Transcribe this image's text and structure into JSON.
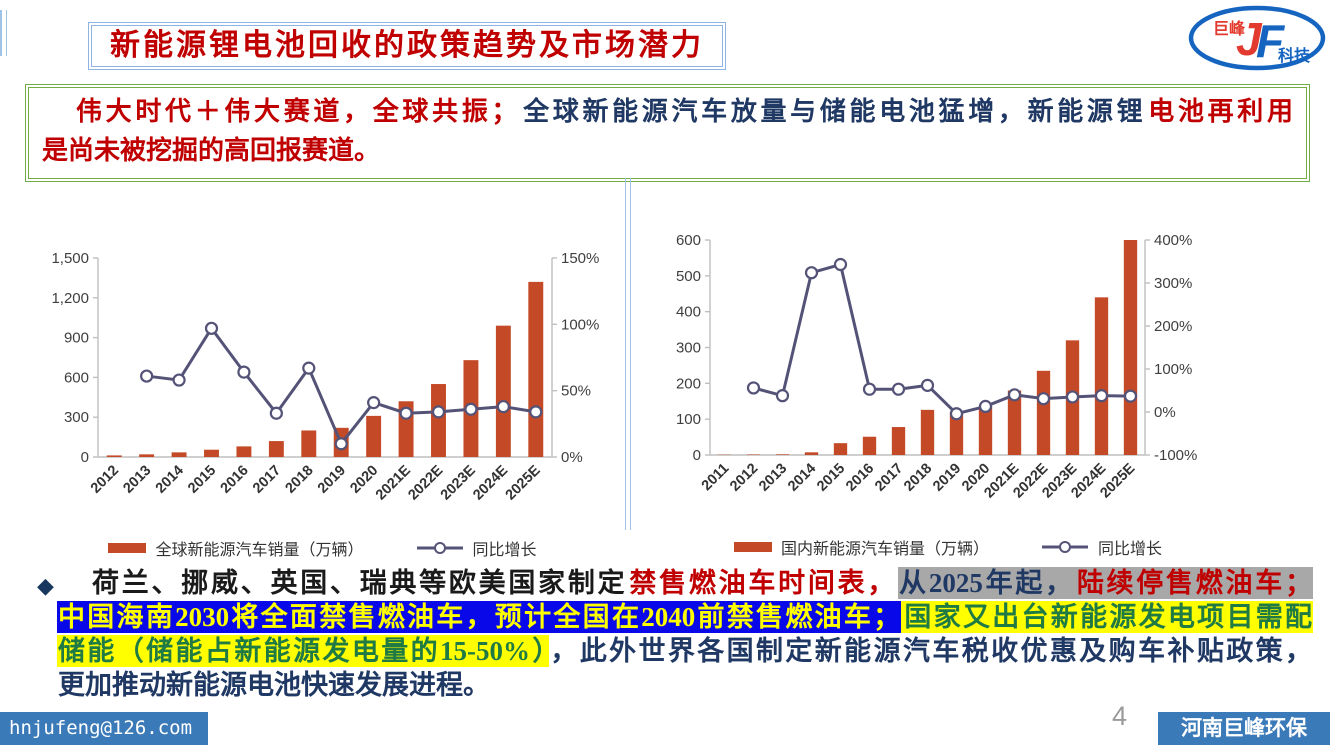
{
  "slide": {
    "title": "新能源锂电池回收的政策趋势及市场潜力",
    "page_number": "4",
    "footer_left_email": "hnjufeng@126.com",
    "footer_right_brand": "河南巨峰环保"
  },
  "logo": {
    "name_cn": "巨峰",
    "suffix_cn": "科技",
    "monogram_j": "J",
    "monogram_f": "F"
  },
  "palette": {
    "title_red": "#C00000",
    "navy_text": "#1F3864",
    "green_border": "#70AD47",
    "highlight_gray": "#A8A8A8",
    "highlight_blue": "#0808E8",
    "highlight_yellow": "#FFFF00",
    "green_text": "#1F7A44",
    "footer_blue": "#3B7AB8",
    "logo_blue": "#1565C0",
    "logo_red": "#E23A2E"
  },
  "headline": {
    "lines": [
      {
        "segments": [
          {
            "text": "伟大时代＋伟大赛道，全球共振；",
            "color": "red"
          },
          {
            "text": "全球新能源汽车放量与储能电池猛增，新能源锂",
            "color": "navy"
          },
          {
            "text": "电池再利用",
            "color": "red"
          }
        ]
      },
      {
        "segments": [
          {
            "text": "是尚未被挖掘的高回报赛道。",
            "color": "red"
          }
        ]
      }
    ]
  },
  "bullet": {
    "marker": "◆",
    "lines": [
      {
        "segments": [
          {
            "text": "荷兰、挪威、英国、瑞典等欧美国家制定",
            "color": "black"
          },
          {
            "text": "禁售燃油车时间表，",
            "color": "red"
          },
          {
            "text": "从2025年起，",
            "color": "navy",
            "bg": "gray"
          },
          {
            "text": "陆续停售燃油车；",
            "color": "red",
            "bg": "gray"
          }
        ]
      },
      {
        "segments": [
          {
            "text": "中国海南2030将全面禁售燃油车，预计全国在2040前禁售燃油车；",
            "color": "yellow",
            "bg": "blue"
          },
          {
            "text": "国家又出台新能源发电项目需配",
            "color": "green",
            "bg": "yellow"
          }
        ]
      },
      {
        "segments": [
          {
            "text": "储能（储能占新能源发电量的15-50%）",
            "color": "green",
            "bg": "yellow"
          },
          {
            "text": "，此外世界各国制定新能源汽车税收优惠及购车补贴政策，",
            "color": "navy"
          }
        ]
      },
      {
        "segments": [
          {
            "text": "更加推动新能源电池快速发展进程。",
            "color": "navy"
          }
        ]
      }
    ]
  },
  "chart_data": [
    {
      "type": "bar",
      "title": "",
      "grid": false,
      "legend_position": "bottom",
      "categories": [
        "2012",
        "2013",
        "2014",
        "2015",
        "2016",
        "2017",
        "2018",
        "2019",
        "2020",
        "2021E",
        "2022E",
        "2023E",
        "2024E",
        "2025E"
      ],
      "series": [
        {
          "name": "全球新能源汽车销量（万辆）",
          "type": "bar",
          "axis": "left",
          "values": [
            12,
            20,
            35,
            55,
            80,
            120,
            200,
            220,
            310,
            420,
            550,
            730,
            990,
            1320
          ]
        },
        {
          "name": "同比增长",
          "type": "line",
          "axis": "right",
          "values": [
            null,
            61,
            58,
            97,
            64,
            33,
            67,
            10,
            41,
            33,
            34,
            36,
            38,
            34
          ]
        }
      ],
      "left_axis": {
        "min": 0,
        "max": 1500,
        "ticks": [
          0,
          300,
          600,
          900,
          1200,
          1500
        ],
        "tick_labels": [
          "0",
          "300",
          "600",
          "900",
          "1,200",
          "1,500"
        ]
      },
      "right_axis": {
        "min": 0,
        "max": 150,
        "ticks": [
          0,
          50,
          100,
          150
        ],
        "tick_labels": [
          "0%",
          "50%",
          "100%",
          "150%"
        ]
      },
      "colors": {
        "bar": "#C44A27",
        "line": "#545377"
      }
    },
    {
      "type": "bar",
      "title": "",
      "grid": false,
      "legend_position": "bottom",
      "categories": [
        "2011",
        "2012",
        "2013",
        "2014",
        "2015",
        "2016",
        "2017",
        "2018",
        "2019",
        "2020",
        "2021E",
        "2022E",
        "2023E",
        "2024E",
        "2025E"
      ],
      "series": [
        {
          "name": "国内新能源汽车销量（万辆）",
          "type": "bar",
          "axis": "left",
          "values": [
            0.8,
            1.3,
            1.8,
            7.5,
            33,
            51,
            78,
            126,
            121,
            137,
            180,
            235,
            320,
            440,
            600
          ]
        },
        {
          "name": "同比增长",
          "type": "line",
          "axis": "right",
          "values": [
            null,
            56,
            38,
            324,
            343,
            53,
            53,
            62,
            -4,
            13,
            40,
            31,
            35,
            38,
            37
          ]
        }
      ],
      "left_axis": {
        "min": 0,
        "max": 600,
        "ticks": [
          0,
          100,
          200,
          300,
          400,
          500,
          600
        ],
        "tick_labels": [
          "0",
          "100",
          "200",
          "300",
          "400",
          "500",
          "600"
        ]
      },
      "right_axis": {
        "min": -100,
        "max": 400,
        "ticks": [
          -100,
          0,
          100,
          200,
          300,
          400
        ],
        "tick_labels": [
          "-100%",
          "0%",
          "100%",
          "200%",
          "300%",
          "400%"
        ]
      },
      "colors": {
        "bar": "#C44A27",
        "line": "#545377"
      }
    }
  ]
}
